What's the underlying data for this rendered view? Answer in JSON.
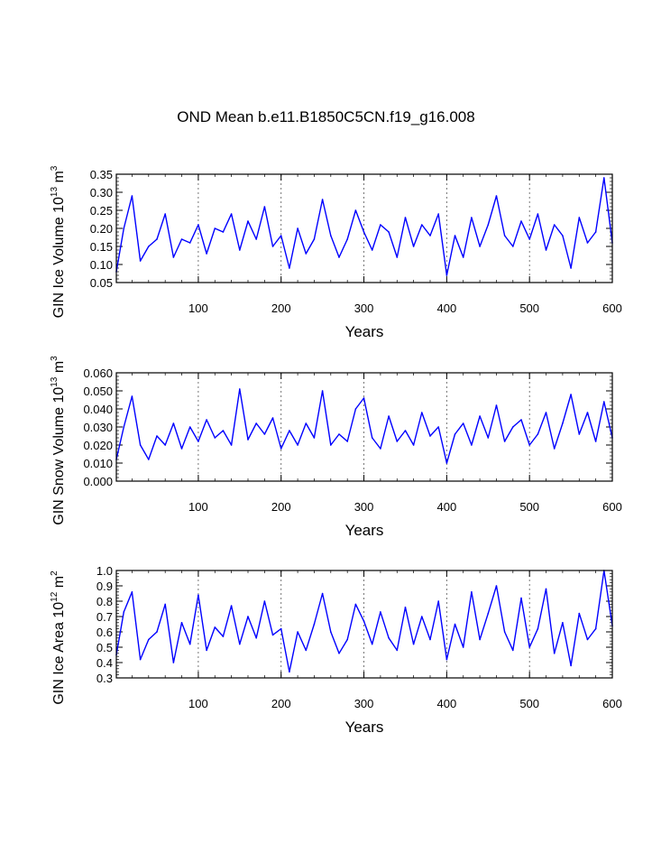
{
  "title": "OND Mean b.e11.B1850C5CN.f19_g16.008",
  "colors": {
    "line": "#0000ff",
    "axis": "#000000",
    "grid": "#555555"
  },
  "chart_data": [
    {
      "type": "line",
      "name": "ice-volume",
      "ylabel_main": "GIN Ice Volume 10",
      "ylabel_sup": "13",
      "ylabel_unit": " m",
      "ylabel_unit_sup": "3",
      "xlabel": "Years",
      "xlim": [
        1,
        600
      ],
      "ylim": [
        0.05,
        0.35
      ],
      "xticks": [
        100,
        200,
        300,
        400,
        500,
        600
      ],
      "yticks": [
        0.05,
        0.1,
        0.15,
        0.2,
        0.25,
        0.3,
        0.35
      ],
      "ytick_labels": [
        "0.05",
        "0.10",
        "0.15",
        "0.20",
        "0.25",
        "0.30",
        "0.35"
      ],
      "grid_x": [
        100,
        200,
        300,
        400,
        500
      ],
      "x": [
        1,
        10,
        20,
        30,
        40,
        50,
        60,
        70,
        80,
        90,
        100,
        110,
        120,
        130,
        140,
        150,
        160,
        170,
        180,
        190,
        200,
        210,
        220,
        230,
        240,
        250,
        260,
        270,
        280,
        290,
        300,
        310,
        320,
        330,
        340,
        350,
        360,
        370,
        380,
        390,
        400,
        410,
        420,
        430,
        440,
        450,
        460,
        470,
        480,
        490,
        500,
        510,
        520,
        530,
        540,
        550,
        560,
        570,
        580,
        590,
        600
      ],
      "values": [
        0.08,
        0.2,
        0.29,
        0.11,
        0.15,
        0.17,
        0.24,
        0.12,
        0.17,
        0.16,
        0.21,
        0.13,
        0.2,
        0.19,
        0.24,
        0.14,
        0.22,
        0.17,
        0.26,
        0.15,
        0.18,
        0.09,
        0.2,
        0.13,
        0.17,
        0.28,
        0.18,
        0.12,
        0.17,
        0.25,
        0.19,
        0.14,
        0.21,
        0.19,
        0.12,
        0.23,
        0.15,
        0.21,
        0.18,
        0.24,
        0.07,
        0.18,
        0.12,
        0.23,
        0.15,
        0.21,
        0.29,
        0.18,
        0.15,
        0.22,
        0.17,
        0.24,
        0.14,
        0.21,
        0.18,
        0.09,
        0.23,
        0.16,
        0.19,
        0.34,
        0.16
      ]
    },
    {
      "type": "line",
      "name": "snow-volume",
      "ylabel_main": "GIN Snow Volume 10",
      "ylabel_sup": "13",
      "ylabel_unit": " m",
      "ylabel_unit_sup": "3",
      "xlabel": "Years",
      "xlim": [
        1,
        600
      ],
      "ylim": [
        0.0,
        0.06
      ],
      "xticks": [
        100,
        200,
        300,
        400,
        500,
        600
      ],
      "yticks": [
        0.0,
        0.01,
        0.02,
        0.03,
        0.04,
        0.05,
        0.06
      ],
      "ytick_labels": [
        "0.000",
        "0.010",
        "0.020",
        "0.030",
        "0.040",
        "0.050",
        "0.060"
      ],
      "grid_x": [
        100,
        200,
        300,
        400,
        500
      ],
      "x": [
        1,
        10,
        20,
        30,
        40,
        50,
        60,
        70,
        80,
        90,
        100,
        110,
        120,
        130,
        140,
        150,
        160,
        170,
        180,
        190,
        200,
        210,
        220,
        230,
        240,
        250,
        260,
        270,
        280,
        290,
        300,
        310,
        320,
        330,
        340,
        350,
        360,
        370,
        380,
        390,
        400,
        410,
        420,
        430,
        440,
        450,
        460,
        470,
        480,
        490,
        500,
        510,
        520,
        530,
        540,
        550,
        560,
        570,
        580,
        590,
        600
      ],
      "values": [
        0.012,
        0.03,
        0.047,
        0.02,
        0.012,
        0.025,
        0.02,
        0.032,
        0.018,
        0.03,
        0.022,
        0.034,
        0.024,
        0.028,
        0.02,
        0.051,
        0.023,
        0.032,
        0.026,
        0.035,
        0.018,
        0.028,
        0.02,
        0.032,
        0.024,
        0.05,
        0.02,
        0.026,
        0.022,
        0.04,
        0.046,
        0.024,
        0.018,
        0.036,
        0.022,
        0.028,
        0.02,
        0.038,
        0.025,
        0.03,
        0.01,
        0.026,
        0.032,
        0.02,
        0.036,
        0.024,
        0.042,
        0.022,
        0.03,
        0.034,
        0.02,
        0.026,
        0.038,
        0.018,
        0.032,
        0.048,
        0.026,
        0.038,
        0.022,
        0.044,
        0.024
      ]
    },
    {
      "type": "line",
      "name": "ice-area",
      "ylabel_main": "GIN Ice Area 10",
      "ylabel_sup": "12",
      "ylabel_unit": " m",
      "ylabel_unit_sup": "2",
      "xlabel": "Years",
      "xlim": [
        1,
        600
      ],
      "ylim": [
        0.3,
        1.0
      ],
      "xticks": [
        100,
        200,
        300,
        400,
        500,
        600
      ],
      "yticks": [
        0.3,
        0.4,
        0.5,
        0.6,
        0.7,
        0.8,
        0.9,
        1.0
      ],
      "ytick_labels": [
        "0.3",
        "0.4",
        "0.5",
        "0.6",
        "0.7",
        "0.8",
        "0.9",
        "1.0"
      ],
      "grid_x": [
        100,
        200,
        300,
        400,
        500
      ],
      "x": [
        1,
        10,
        20,
        30,
        40,
        50,
        60,
        70,
        80,
        90,
        100,
        110,
        120,
        130,
        140,
        150,
        160,
        170,
        180,
        190,
        200,
        210,
        220,
        230,
        240,
        250,
        260,
        270,
        280,
        290,
        300,
        310,
        320,
        330,
        340,
        350,
        360,
        370,
        380,
        390,
        400,
        410,
        420,
        430,
        440,
        450,
        460,
        470,
        480,
        490,
        500,
        510,
        520,
        530,
        540,
        550,
        560,
        570,
        580,
        590,
        600
      ],
      "values": [
        0.45,
        0.73,
        0.86,
        0.42,
        0.55,
        0.6,
        0.78,
        0.4,
        0.66,
        0.52,
        0.84,
        0.48,
        0.63,
        0.57,
        0.77,
        0.52,
        0.7,
        0.56,
        0.8,
        0.58,
        0.62,
        0.34,
        0.6,
        0.48,
        0.65,
        0.85,
        0.6,
        0.46,
        0.55,
        0.78,
        0.67,
        0.52,
        0.73,
        0.56,
        0.48,
        0.76,
        0.52,
        0.7,
        0.55,
        0.8,
        0.42,
        0.65,
        0.5,
        0.86,
        0.55,
        0.72,
        0.9,
        0.6,
        0.48,
        0.82,
        0.5,
        0.62,
        0.88,
        0.46,
        0.66,
        0.38,
        0.72,
        0.55,
        0.62,
        1.0,
        0.64
      ]
    }
  ]
}
